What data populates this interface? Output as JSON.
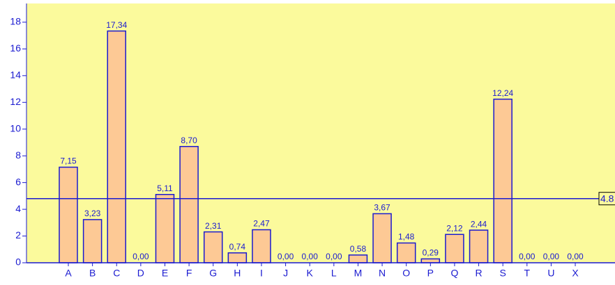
{
  "chart_data": {
    "type": "bar",
    "categories": [
      "A",
      "B",
      "C",
      "D",
      "E",
      "F",
      "G",
      "H",
      "I",
      "J",
      "K",
      "L",
      "M",
      "N",
      "O",
      "P",
      "Q",
      "R",
      "S",
      "T",
      "U",
      "X"
    ],
    "values": [
      7.15,
      3.23,
      17.34,
      0,
      5.11,
      8.7,
      2.31,
      0.74,
      2.47,
      0,
      0,
      0,
      0.58,
      3.67,
      1.48,
      0.29,
      2.12,
      2.44,
      12.24,
      0,
      0,
      0
    ],
    "value_labels": [
      "7,15",
      "3,23",
      "17,34",
      "0,00",
      "5,11",
      "8,70",
      "2,31",
      "0,74",
      "2,47",
      "0,00",
      "0,00",
      "0,00",
      "0,58",
      "3,67",
      "1,48",
      "0,29",
      "2,12",
      "2,44",
      "12,24",
      "0,00",
      "0,00",
      "0,00"
    ],
    "color": "#fdc995",
    "ylim": [
      0,
      19.4
    ],
    "yticks": [
      0,
      2,
      4,
      6,
      8,
      10,
      12,
      14,
      16,
      18
    ],
    "reference_line": 4.8
  }
}
